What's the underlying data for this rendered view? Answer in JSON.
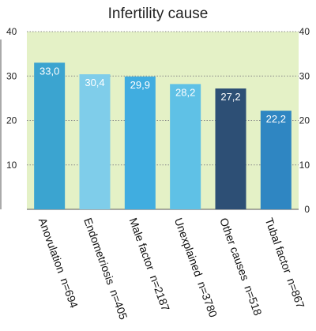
{
  "chart_data": {
    "type": "bar",
    "title": "Infertility cause",
    "xlabel": "",
    "ylabel": "",
    "ylim": [
      0,
      40
    ],
    "yticks": [
      0,
      10,
      20,
      30,
      40
    ],
    "ytick_labels_left": [
      "",
      "10",
      "20",
      "30",
      "40"
    ],
    "ytick_labels_right": [
      "0",
      "10",
      "20",
      "30",
      "40"
    ],
    "grid": true,
    "categories": [
      "Anovulation  n=694",
      "Endometriosis  n=405",
      "Male factor  n=2187",
      "Unexplained  n=3780",
      "Other causes  n=518",
      "Tubal factor  n=867"
    ],
    "values": [
      33.0,
      30.4,
      29.9,
      28.2,
      27.2,
      22.2
    ],
    "value_labels": [
      "33,0",
      "30,4",
      "29,9",
      "28,2",
      "27,2",
      "22,2"
    ],
    "colors": [
      "#3ba4d0",
      "#7fcdea",
      "#40ade0",
      "#5fc1e6",
      "#2d4f75",
      "#2f86c2"
    ],
    "plot_background": "#e4f1c6"
  }
}
